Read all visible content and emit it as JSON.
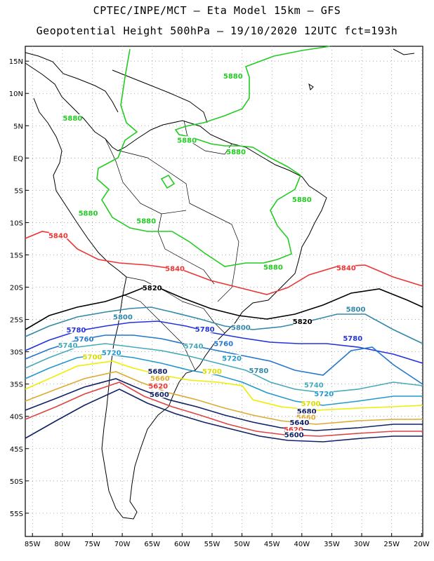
{
  "title_line1": "CPTEC/INPE/MCT –  Eta Model 15km – GFS",
  "title_line2": "Geopotential Height 500hPa – 19/10/2020 12UTC fct=193h",
  "lat_labels": [
    "15N",
    "10N",
    "5N",
    "EQ",
    "5S",
    "10S",
    "15S",
    "20S",
    "25S",
    "30S",
    "35S",
    "40S",
    "45S",
    "50S",
    "55S"
  ],
  "lon_labels": [
    "85W",
    "80W",
    "75W",
    "70W",
    "65W",
    "60W",
    "55W",
    "50W",
    "45W",
    "40W",
    "35W",
    "30W",
    "25W",
    "20W"
  ],
  "colors": {
    "c5880": "#22cc22",
    "c5840": "#ee3333",
    "c5820": "#000000",
    "c5800": "#3388aa",
    "c5780": "#2233dd",
    "c5760": "#2277cc",
    "c5740": "#44aabb",
    "c5720": "#2299cc",
    "c5700": "#eeee00",
    "c5680": "#ddaa33",
    "c5660": "#ee3333",
    "c5620": "#dd4444",
    "c5600": "#112266"
  },
  "contour_labels": [
    {
      "text": "5880",
      "color": "#22cc22",
      "lon": -51.5,
      "lat": 12.4
    },
    {
      "text": "5880",
      "color": "#22cc22",
      "lon": -78.3,
      "lat": 5.9
    },
    {
      "text": "5880",
      "color": "#22cc22",
      "lon": -59.2,
      "lat": 2.5
    },
    {
      "text": "5880",
      "color": "#22cc22",
      "lon": -51.0,
      "lat": 0.7
    },
    {
      "text": "5880",
      "color": "#22cc22",
      "lon": -40.0,
      "lat": -6.7
    },
    {
      "text": "5880",
      "color": "#22cc22",
      "lon": -75.7,
      "lat": -8.8
    },
    {
      "text": "5880",
      "color": "#22cc22",
      "lon": -66.0,
      "lat": -10.0
    },
    {
      "text": "5880",
      "color": "#22cc22",
      "lon": -44.8,
      "lat": -17.2
    },
    {
      "text": "5840",
      "color": "#ee3333",
      "lon": -80.7,
      "lat": -12.3
    },
    {
      "text": "5840",
      "color": "#ee3333",
      "lon": -61.2,
      "lat": -17.4
    },
    {
      "text": "5840",
      "color": "#ee3333",
      "lon": -32.6,
      "lat": -17.3
    },
    {
      "text": "5820",
      "color": "#000000",
      "lon": -65.0,
      "lat": -20.4
    },
    {
      "text": "5820",
      "color": "#000000",
      "lon": -39.9,
      "lat": -25.6
    },
    {
      "text": "5800",
      "color": "#3388aa",
      "lon": -69.9,
      "lat": -24.9
    },
    {
      "text": "5800",
      "color": "#3388aa",
      "lon": -31.0,
      "lat": -23.7
    },
    {
      "text": "5800",
      "color": "#3388aa",
      "lon": -50.2,
      "lat": -26.5
    },
    {
      "text": "5780",
      "color": "#2233dd",
      "lon": -77.7,
      "lat": -26.9
    },
    {
      "text": "5780",
      "color": "#2233dd",
      "lon": -56.2,
      "lat": -26.8
    },
    {
      "text": "5780",
      "color": "#2233dd",
      "lon": -31.5,
      "lat": -28.2
    },
    {
      "text": "5780",
      "color": "#3388aa",
      "lon": -47.2,
      "lat": -33.2
    },
    {
      "text": "5760",
      "color": "#2277cc",
      "lon": -76.4,
      "lat": -28.3
    },
    {
      "text": "5760",
      "color": "#2277cc",
      "lon": -53.1,
      "lat": -29.0
    },
    {
      "text": "5740",
      "color": "#44aabb",
      "lon": -79.1,
      "lat": -29.3
    },
    {
      "text": "5740",
      "color": "#44aabb",
      "lon": -58.1,
      "lat": -29.4
    },
    {
      "text": "5740",
      "color": "#44aabb",
      "lon": -38.0,
      "lat": -35.4
    },
    {
      "text": "5720",
      "color": "#2299cc",
      "lon": -51.7,
      "lat": -31.3
    },
    {
      "text": "5720",
      "color": "#2299cc",
      "lon": -71.8,
      "lat": -30.4
    },
    {
      "text": "5720",
      "color": "#2299cc",
      "lon": -36.3,
      "lat": -36.8
    },
    {
      "text": "5700",
      "color": "#dddd00",
      "lon": -75.0,
      "lat": -31.1
    },
    {
      "text": "5700",
      "color": "#dddd00",
      "lon": -55.0,
      "lat": -33.3
    },
    {
      "text": "5700",
      "color": "#dddd00",
      "lon": -38.5,
      "lat": -38.3
    },
    {
      "text": "5680",
      "color": "#112266",
      "lon": -64.1,
      "lat": -33.3
    },
    {
      "text": "5680",
      "color": "#112266",
      "lon": -39.2,
      "lat": -39.5
    },
    {
      "text": "5660",
      "color": "#ddaa33",
      "lon": -63.7,
      "lat": -34.4
    },
    {
      "text": "5660",
      "color": "#ddaa33",
      "lon": -39.3,
      "lat": -40.4
    },
    {
      "text": "5640",
      "color": "#112266",
      "lon": -40.4,
      "lat": -41.2
    },
    {
      "text": "5620",
      "color": "#ee3333",
      "lon": -64.0,
      "lat": -35.6
    },
    {
      "text": "5620",
      "color": "#ee3333",
      "lon": -41.4,
      "lat": -42.3
    },
    {
      "text": "5600",
      "color": "#112266",
      "lon": -63.8,
      "lat": -36.9
    },
    {
      "text": "5600",
      "color": "#112266",
      "lon": -41.3,
      "lat": -43.1
    }
  ]
}
